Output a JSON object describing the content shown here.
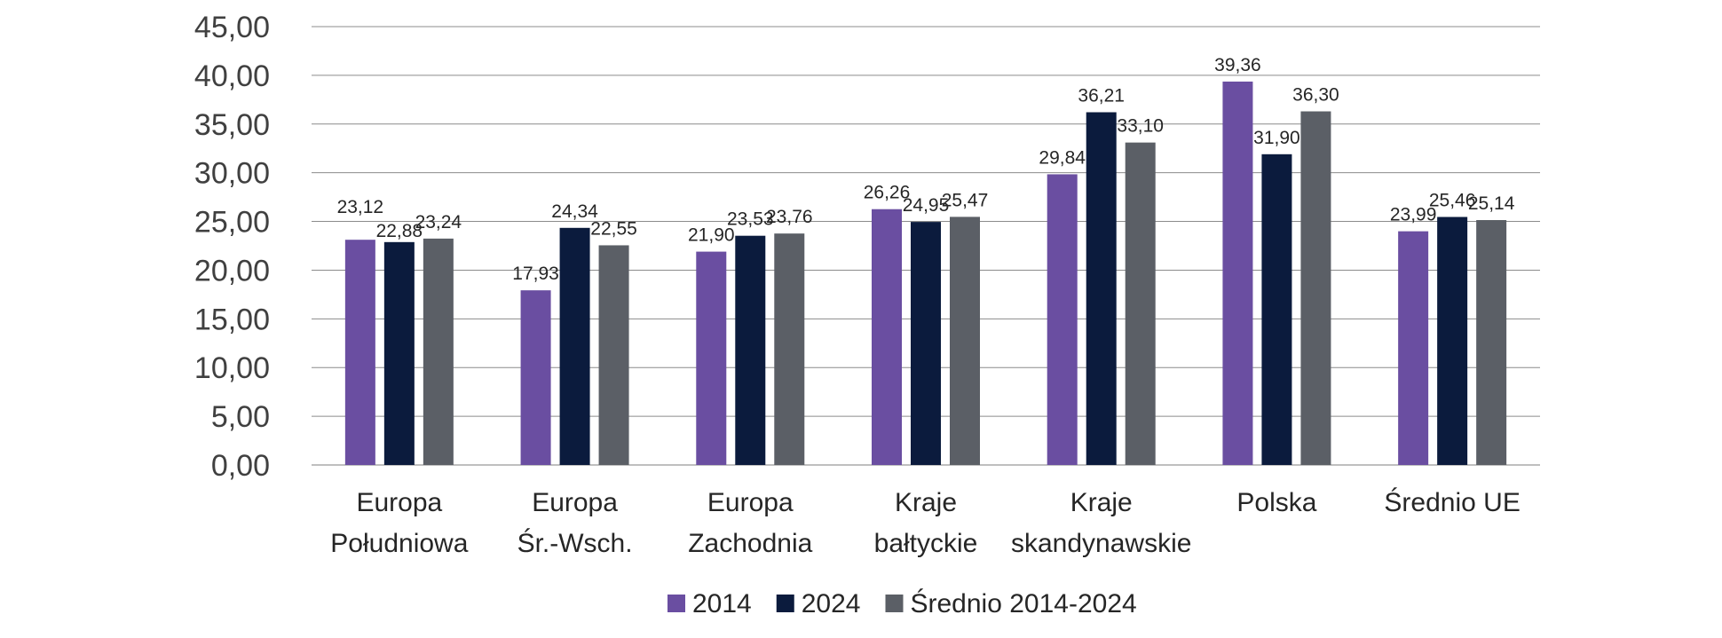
{
  "chart_data": {
    "type": "bar",
    "title": "",
    "xlabel": "",
    "ylabel": "",
    "ylim": [
      0,
      45
    ],
    "yticks": [
      "0,00",
      "5,00",
      "10,00",
      "15,00",
      "20,00",
      "25,00",
      "30,00",
      "35,00",
      "40,00",
      "45,00"
    ],
    "grid": true,
    "legend_position": "bottom",
    "categories": [
      [
        "Europa",
        "Południowa"
      ],
      [
        "Europa",
        "Śr.-Wsch."
      ],
      [
        "Europa",
        "Zachodnia"
      ],
      [
        "Kraje",
        "bałtyckie"
      ],
      [
        "Kraje",
        "skandynawskie"
      ],
      [
        "Polska"
      ],
      [
        "Średnio UE"
      ]
    ],
    "series": [
      {
        "name": "2014",
        "color": "#6a4ea1",
        "values": [
          23.12,
          17.93,
          21.9,
          26.26,
          29.84,
          39.36,
          23.99
        ],
        "labels": [
          "23,12",
          "17,93",
          "21,90",
          "26,26",
          "29,84",
          "39,36",
          "23,99"
        ]
      },
      {
        "name": "2024",
        "color": "#0b1b3d",
        "values": [
          22.88,
          24.34,
          23.53,
          24.95,
          36.21,
          31.9,
          25.46
        ],
        "labels": [
          "22,88",
          "24,34",
          "23,53",
          "24,95",
          "36,21",
          "31,90",
          "25,46"
        ]
      },
      {
        "name": "Średnio 2014-2024",
        "color": "#5b5f66",
        "values": [
          23.24,
          22.55,
          23.76,
          25.47,
          33.1,
          36.3,
          25.14
        ],
        "labels": [
          "23,24",
          "22,55",
          "23,76",
          "25,47",
          "33,10",
          "36,30",
          "25,14"
        ]
      }
    ]
  }
}
